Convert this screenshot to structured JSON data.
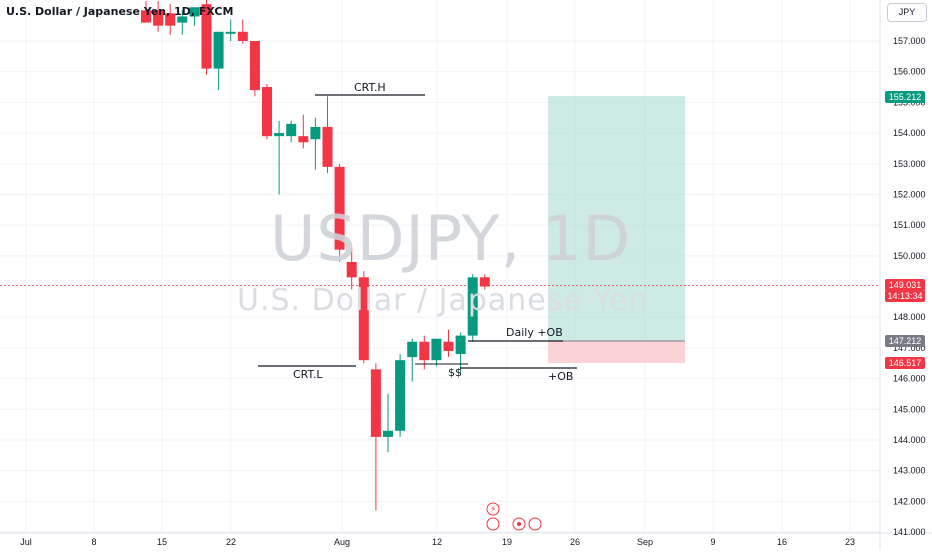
{
  "header": {
    "title": "U.S. Dollar / Japanese Yen, 1D, FXCM",
    "currency": "JPY"
  },
  "watermark": {
    "symbol": "USDJPY, 1D",
    "name": "U.S. Dollar / Japanese Yen"
  },
  "annotations": {
    "crt_h": "CRT.H",
    "crt_l": "CRT.L",
    "daily_ob": "Daily +OB",
    "ob": "+OB",
    "ss": "$$"
  },
  "price_tags": {
    "target": "155.212",
    "current": "149.031",
    "countdown": "14:13:34",
    "entry": "147.212",
    "stop": "146.517"
  },
  "colors": {
    "up": "#089981",
    "down": "#f23645",
    "target_zone": "#b2dfd6",
    "stop_zone": "#fbd3d6",
    "grid": "#f0f3fa"
  },
  "chart_data": {
    "type": "candlestick",
    "title": "U.S. Dollar / Japanese Yen, 1D, FXCM",
    "ylim": [
      141,
      158
    ],
    "y_ticks": [
      "157.000",
      "156.000",
      "155.000",
      "154.000",
      "153.000",
      "152.000",
      "151.000",
      "150.000",
      "148.000",
      "147.000",
      "146.000",
      "145.000",
      "144.000",
      "143.000",
      "142.000",
      "141.000"
    ],
    "x_ticks": [
      "Jul",
      "8",
      "15",
      "22",
      "Aug",
      "12",
      "19",
      "26",
      "Sep",
      "9",
      "16",
      "23"
    ],
    "candles": [
      {
        "o": 158.0,
        "h": 158.3,
        "l": 157.6,
        "c": 157.6
      },
      {
        "o": 158.0,
        "h": 158.3,
        "l": 157.3,
        "c": 157.5
      },
      {
        "o": 157.9,
        "h": 158.2,
        "l": 157.2,
        "c": 157.5
      },
      {
        "o": 157.6,
        "h": 158.0,
        "l": 157.2,
        "c": 157.8
      },
      {
        "o": 157.8,
        "h": 158.1,
        "l": 157.5,
        "c": 158.1
      },
      {
        "o": 158.2,
        "h": 158.4,
        "l": 155.9,
        "c": 156.1
      },
      {
        "o": 156.1,
        "h": 157.3,
        "l": 155.4,
        "c": 157.3
      },
      {
        "o": 157.3,
        "h": 157.7,
        "l": 157.0,
        "c": 157.3
      },
      {
        "o": 157.3,
        "h": 157.7,
        "l": 156.9,
        "c": 157.0
      },
      {
        "o": 157.0,
        "h": 157.0,
        "l": 155.2,
        "c": 155.4
      },
      {
        "o": 155.5,
        "h": 155.6,
        "l": 153.8,
        "c": 153.9
      },
      {
        "o": 153.9,
        "h": 154.4,
        "l": 152.0,
        "c": 154.0
      },
      {
        "o": 153.9,
        "h": 154.4,
        "l": 153.7,
        "c": 154.3
      },
      {
        "o": 153.9,
        "h": 154.6,
        "l": 153.5,
        "c": 153.7
      },
      {
        "o": 153.8,
        "h": 154.5,
        "l": 152.8,
        "c": 154.2
      },
      {
        "o": 154.2,
        "h": 155.2,
        "l": 152.7,
        "c": 152.9
      },
      {
        "o": 152.9,
        "h": 153.0,
        "l": 149.8,
        "c": 150.2
      },
      {
        "o": 149.8,
        "h": 150.3,
        "l": 148.9,
        "c": 149.3
      },
      {
        "o": 149.3,
        "h": 149.5,
        "l": 146.5,
        "c": 146.6
      },
      {
        "o": 146.3,
        "h": 146.5,
        "l": 141.7,
        "c": 144.1
      },
      {
        "o": 144.1,
        "h": 145.5,
        "l": 143.6,
        "c": 144.3
      },
      {
        "o": 144.3,
        "h": 146.8,
        "l": 144.1,
        "c": 146.6
      },
      {
        "o": 146.7,
        "h": 147.3,
        "l": 145.9,
        "c": 147.2
      },
      {
        "o": 147.2,
        "h": 147.4,
        "l": 146.3,
        "c": 146.6
      },
      {
        "o": 146.6,
        "h": 147.2,
        "l": 146.4,
        "c": 147.3
      },
      {
        "o": 147.2,
        "h": 147.6,
        "l": 146.7,
        "c": 146.9
      },
      {
        "o": 146.8,
        "h": 147.5,
        "l": 146.2,
        "c": 147.4
      },
      {
        "o": 147.4,
        "h": 149.4,
        "l": 147.2,
        "c": 149.3
      },
      {
        "o": 149.3,
        "h": 149.4,
        "l": 148.9,
        "c": 149.0
      }
    ]
  }
}
